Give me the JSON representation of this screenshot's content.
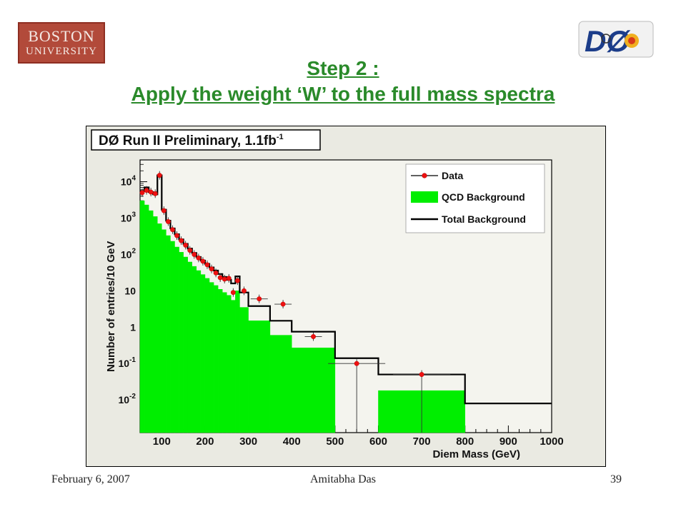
{
  "logos": {
    "university_line1": "BOSTON",
    "university_line2": "UNIVERSITY",
    "experiment": "DØ"
  },
  "title": {
    "line1": "Step 2 : ",
    "line2": "Apply the weight ‘W’ to the full mass spectra"
  },
  "chart_data": {
    "type": "histogram",
    "title": "DØ Run II Preliminary, 1.1fb",
    "title_superscript": "-1",
    "xlabel": "Diem Mass (GeV)",
    "ylabel": "Number of entries/10 GeV",
    "xlim": [
      50,
      1000
    ],
    "ylim_log10": [
      -2.9,
      4.6
    ],
    "yscale": "log",
    "x_ticks": [
      100,
      200,
      300,
      400,
      500,
      600,
      700,
      800,
      900,
      1000
    ],
    "y_tick_labels": [
      {
        "base": "10",
        "exp": "4",
        "value": 10000
      },
      {
        "base": "10",
        "exp": "3",
        "value": 1000
      },
      {
        "base": "10",
        "exp": "2",
        "value": 100
      },
      {
        "base": "10",
        "exp": "",
        "value": 10
      },
      {
        "base": "1",
        "exp": "",
        "value": 1
      },
      {
        "base": "10",
        "exp": "-1",
        "value": 0.1
      },
      {
        "base": "10",
        "exp": "-2",
        "value": 0.01
      }
    ],
    "legend_position": "top-right",
    "colors": {
      "qcd_fill": "#00ee00",
      "data_marker": "#ee1111",
      "total_line": "#000000",
      "plot_background": "#f4f4ee",
      "frame_background": "#eaeae2"
    },
    "series": [
      {
        "name": "Data",
        "kind": "points",
        "points": [
          [
            55,
            5000
          ],
          [
            65,
            5800
          ],
          [
            75,
            5200
          ],
          [
            85,
            4700
          ],
          [
            95,
            15000
          ],
          [
            105,
            1600
          ],
          [
            115,
            800
          ],
          [
            125,
            480
          ],
          [
            135,
            330
          ],
          [
            145,
            240
          ],
          [
            155,
            180
          ],
          [
            165,
            130
          ],
          [
            175,
            100
          ],
          [
            185,
            80
          ],
          [
            195,
            65
          ],
          [
            205,
            52
          ],
          [
            215,
            40
          ],
          [
            225,
            31
          ],
          [
            235,
            23
          ],
          [
            245,
            21
          ],
          [
            255,
            22
          ],
          [
            265,
            9
          ],
          [
            275,
            19
          ],
          [
            290,
            10
          ],
          [
            325,
            6
          ],
          [
            380,
            4.3
          ],
          [
            450,
            0.55
          ],
          [
            550,
            0.1
          ],
          [
            700,
            0.05
          ]
        ]
      },
      {
        "name": "QCD Background",
        "kind": "filled-step",
        "edges": [
          50,
          60,
          70,
          80,
          90,
          100,
          110,
          120,
          130,
          140,
          150,
          160,
          170,
          180,
          190,
          200,
          210,
          220,
          230,
          240,
          250,
          260,
          270,
          280,
          300,
          350,
          400,
          500,
          600,
          800,
          1000
        ],
        "values": [
          3000,
          2300,
          1600,
          1100,
          700,
          480,
          330,
          230,
          160,
          115,
          85,
          62,
          47,
          36,
          28,
          22,
          17,
          14,
          11,
          9,
          7.5,
          5.5,
          10,
          3.5,
          1.5,
          0.6,
          0.27,
          0,
          0.018,
          0
        ]
      },
      {
        "name": "Total Background",
        "kind": "step-line",
        "edges": [
          50,
          60,
          70,
          80,
          90,
          100,
          110,
          120,
          130,
          140,
          150,
          160,
          170,
          180,
          190,
          200,
          210,
          220,
          230,
          240,
          250,
          260,
          270,
          280,
          300,
          350,
          400,
          500,
          600,
          800,
          1000
        ],
        "values": [
          5500,
          7000,
          5200,
          4500,
          15000,
          1700,
          850,
          520,
          360,
          260,
          195,
          145,
          110,
          85,
          68,
          55,
          44,
          36,
          29,
          24,
          20,
          16,
          25,
          9,
          3.8,
          1.5,
          0.75,
          0.14,
          0.05,
          0.008
        ]
      }
    ]
  },
  "footer": {
    "date": "February 6, 2007",
    "author": "Amitabha Das",
    "page": "39"
  }
}
